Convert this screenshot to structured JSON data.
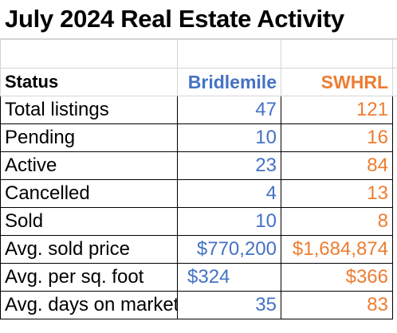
{
  "title": "July 2024 Real Estate Activity",
  "headers": {
    "status": "Status",
    "col1": "Bridlemile",
    "col2": "SWHRL"
  },
  "colors": {
    "bridlemile": "#4472c4",
    "swhrl": "#ed7d31"
  },
  "rows": [
    {
      "label": "Total listings",
      "bridlemile": "47",
      "swhrl": "121"
    },
    {
      "label": "Pending",
      "bridlemile": "10",
      "swhrl": "16"
    },
    {
      "label": "Active",
      "bridlemile": "23",
      "swhrl": "84"
    },
    {
      "label": "Cancelled",
      "bridlemile": "4",
      "swhrl": "13"
    },
    {
      "label": "Sold",
      "bridlemile": "10",
      "swhrl": "8"
    },
    {
      "label": "Avg. sold price",
      "bridlemile": "$770,200",
      "swhrl": "$1,684,874"
    },
    {
      "label": "Avg. per sq. foot",
      "bridlemile": "$324",
      "swhrl": "$366"
    },
    {
      "label": "Avg. days on market",
      "bridlemile": "35",
      "swhrl": "83"
    }
  ]
}
